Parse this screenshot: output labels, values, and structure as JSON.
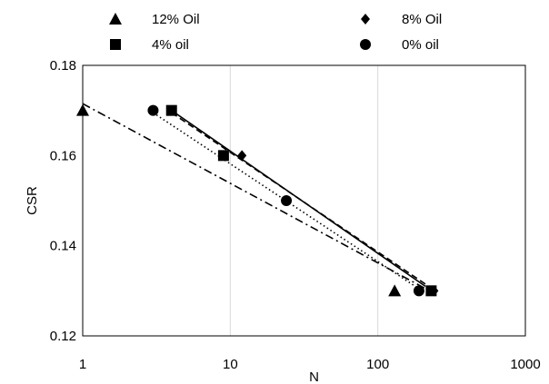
{
  "chart_data": {
    "type": "scatter",
    "xlabel": "N",
    "ylabel": "CSR",
    "xscale": "log",
    "xlim": [
      1,
      1000
    ],
    "ylim": [
      0.12,
      0.18
    ],
    "x_ticks": [
      "1",
      "10",
      "100",
      "1000"
    ],
    "y_ticks": [
      "0.12",
      "0.14",
      "0.16",
      "0.18"
    ],
    "grid": "vertical",
    "legend_position": "top",
    "series": [
      {
        "name": "12% Oil",
        "marker": "triangle",
        "color": "#000000",
        "line_style": "dash-dot",
        "points": [
          {
            "x": 1,
            "y": 0.17
          },
          {
            "x": 130,
            "y": 0.13
          }
        ],
        "trend": [
          {
            "x": 1,
            "y": 0.1715
          },
          {
            "x": 210,
            "y": 0.1305
          }
        ]
      },
      {
        "name": "8% Oil",
        "marker": "diamond",
        "color": "#000000",
        "line_style": "dashed",
        "points": [
          {
            "x": 12,
            "y": 0.16
          },
          {
            "x": 240,
            "y": 0.13
          }
        ],
        "trend": [
          {
            "x": 4,
            "y": 0.1695
          },
          {
            "x": 210,
            "y": 0.1315
          }
        ]
      },
      {
        "name": "4% oil",
        "marker": "square",
        "color": "#000000",
        "line_style": "solid",
        "points": [
          {
            "x": 4,
            "y": 0.17
          },
          {
            "x": 9,
            "y": 0.16
          },
          {
            "x": 230,
            "y": 0.13
          }
        ],
        "trend": [
          {
            "x": 4,
            "y": 0.17
          },
          {
            "x": 210,
            "y": 0.131
          }
        ]
      },
      {
        "name": "0% oil",
        "marker": "circle",
        "color": "#000000",
        "line_style": "dotted",
        "points": [
          {
            "x": 3,
            "y": 0.17
          },
          {
            "x": 24,
            "y": 0.15
          },
          {
            "x": 190,
            "y": 0.13
          }
        ],
        "trend": [
          {
            "x": 3,
            "y": 0.1695
          },
          {
            "x": 210,
            "y": 0.1295
          }
        ]
      }
    ]
  }
}
